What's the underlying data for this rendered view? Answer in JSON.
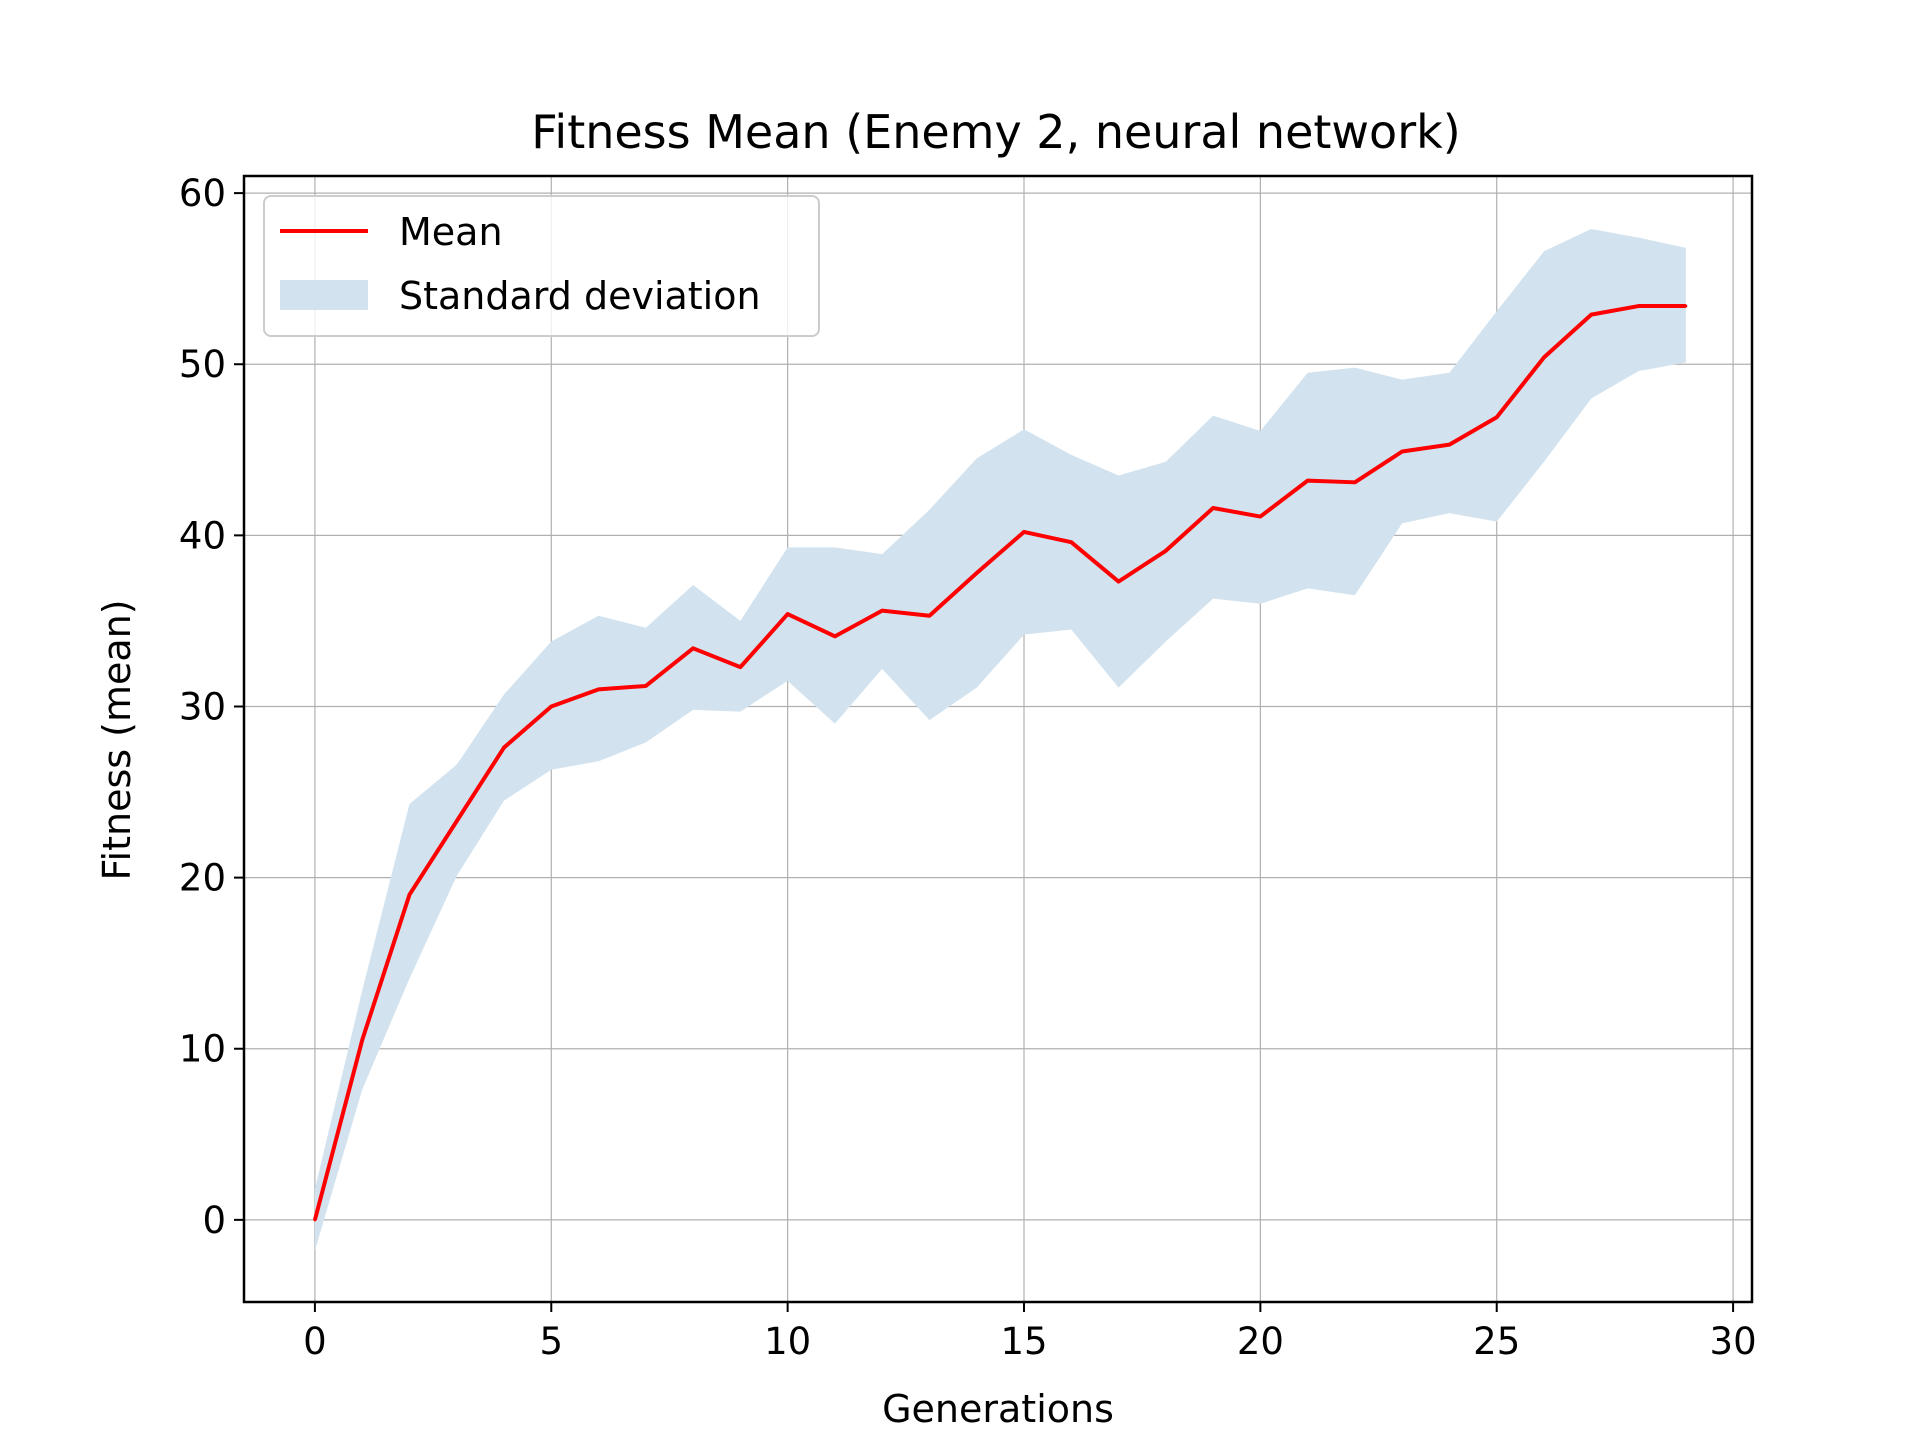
{
  "chart_data": {
    "type": "line",
    "title": "Fitness Mean (Enemy 2, neural network)",
    "xlabel": "Generations",
    "ylabel": "Fitness (mean)",
    "xlim": [
      -1.5,
      30.4
    ],
    "ylim": [
      -4.8,
      61
    ],
    "x_ticks": [
      0,
      5,
      10,
      15,
      20,
      25,
      30
    ],
    "y_ticks": [
      0,
      10,
      20,
      30,
      40,
      50,
      60
    ],
    "grid": true,
    "legend_position": "top-left",
    "x": [
      0,
      1,
      2,
      3,
      4,
      5,
      6,
      7,
      8,
      9,
      10,
      11,
      12,
      13,
      14,
      15,
      16,
      17,
      18,
      19,
      20,
      21,
      22,
      23,
      24,
      25,
      26,
      27,
      28,
      29
    ],
    "series": [
      {
        "name": "Mean",
        "kind": "line",
        "color": "#ff0000",
        "values": [
          0,
          10.5,
          19,
          23.3,
          27.6,
          30,
          31,
          31.2,
          33.4,
          32.3,
          35.4,
          34.1,
          35.6,
          35.3,
          37.8,
          40.2,
          39.6,
          37.3,
          39.1,
          41.6,
          41.1,
          43.2,
          43.1,
          44.9,
          45.3,
          46.9,
          50.4,
          52.9,
          53.4,
          53.4
        ]
      },
      {
        "name": "Standard deviation",
        "kind": "band",
        "color": "#d2e3ef",
        "lower": [
          -1.8,
          7.6,
          14.1,
          20.1,
          24.5,
          26.3,
          26.8,
          27.9,
          29.8,
          29.7,
          31.5,
          29,
          32.2,
          29.2,
          31.1,
          34.2,
          34.5,
          31.1,
          33.8,
          36.3,
          36,
          36.9,
          36.5,
          40.7,
          41.3,
          40.8,
          44.3,
          48,
          49.6,
          50.1
        ],
        "upper": [
          1.8,
          13.4,
          24.3,
          26.6,
          30.7,
          33.8,
          35.3,
          34.6,
          37.1,
          35,
          39.3,
          39.3,
          38.9,
          41.5,
          44.5,
          46.2,
          44.7,
          43.5,
          44.3,
          47,
          46.1,
          49.5,
          49.8,
          49.1,
          49.5,
          53.1,
          56.6,
          57.9,
          57.4,
          56.8
        ]
      }
    ]
  }
}
